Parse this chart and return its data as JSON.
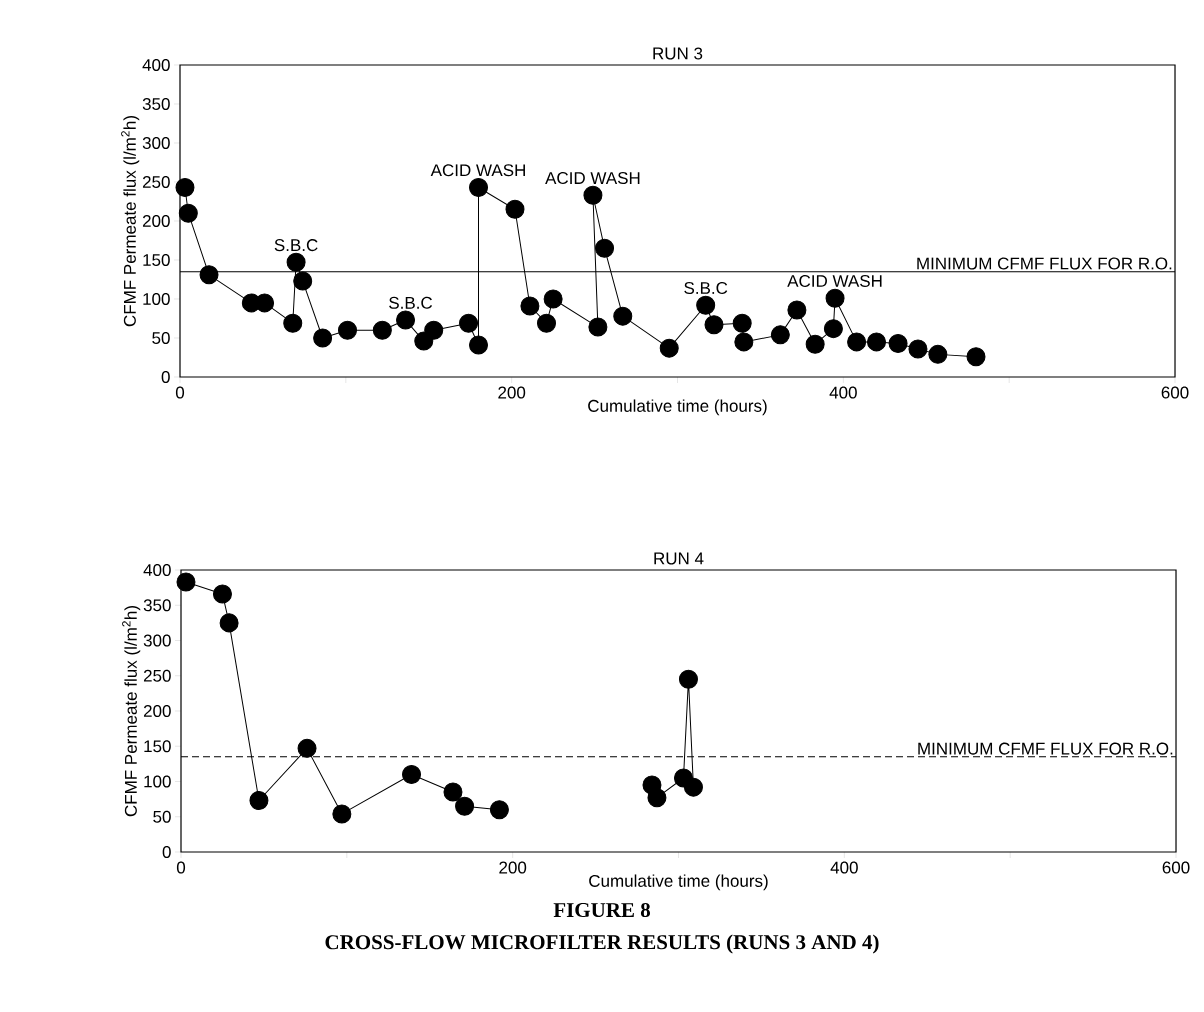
{
  "chart_data": [
    {
      "type": "line",
      "title": "RUN 3",
      "xlabel": "Cumulative time (hours)",
      "ylabel": "CFMF Permeate flux (l/m$^{2}$h)",
      "x": [
        3,
        5,
        17.5,
        43,
        51,
        68,
        70,
        74,
        86,
        101,
        122,
        136,
        147,
        153,
        174,
        180,
        180,
        202,
        211,
        221,
        225,
        252,
        249,
        256,
        267,
        295,
        317,
        322,
        339,
        340,
        362,
        372,
        383,
        394,
        395,
        408,
        420,
        433,
        445,
        457,
        480
      ],
      "series": [
        {
          "color": "#000000",
          "marker": "circle",
          "line_style": "solid",
          "values": [
            243,
            210,
            131,
            95,
            95,
            69,
            147,
            123,
            50,
            60,
            60,
            73,
            46,
            60,
            69,
            41,
            243,
            215,
            91,
            69,
            100,
            64,
            233,
            165,
            78,
            37,
            92,
            67,
            69,
            45,
            54,
            86,
            42,
            62,
            101,
            45,
            45,
            43,
            36,
            29,
            26
          ]
        }
      ],
      "xlim": [
        0,
        600
      ],
      "ylim": [
        0,
        400
      ],
      "xticks": [
        0,
        {
          "value": 100,
          "label": null
        },
        200,
        {
          "value": 300,
          "label": null
        },
        400,
        {
          "value": 500,
          "label": null
        },
        600
      ],
      "yticks": [
        0,
        50,
        100,
        150,
        200,
        250,
        300,
        350,
        400
      ],
      "ref_lines": [
        {
          "axis": "y",
          "value": 135,
          "label": "MINIMUM CFMF FLUX FOR R.O.",
          "line_style": "solid"
        }
      ],
      "annotations": [
        {
          "text": "S.B.C",
          "x": 70,
          "y": 147
        },
        {
          "text": "S.B.C",
          "x": 139,
          "y": 73
        },
        {
          "text": "ACID WASH",
          "x": 180,
          "y": 243
        },
        {
          "text": "ACID WASH",
          "x": 249,
          "y": 233
        },
        {
          "text": "S.B.C",
          "x": 317,
          "y": 92
        },
        {
          "text": "ACID WASH",
          "x": 395,
          "y": 101
        }
      ]
    },
    {
      "type": "line",
      "title": "RUN 4",
      "xlabel": "Cumulative time (hours)",
      "ylabel": "CFMF Permeate flux (l/m$^{2}$h)",
      "x": [
        3,
        25,
        29,
        47,
        76,
        97,
        139,
        164,
        171,
        192,
        240,
        284,
        287,
        303,
        306,
        309
      ],
      "series": [
        {
          "color": "#000000",
          "marker": "circle",
          "line_style": "solid",
          "values": [
            383,
            366,
            325,
            73,
            147,
            54,
            110,
            85,
            65,
            60,
            null,
            95,
            77,
            105,
            245,
            92
          ]
        }
      ],
      "xlim": [
        0,
        600
      ],
      "ylim": [
        0,
        400
      ],
      "xticks": [
        0,
        {
          "value": 100,
          "label": null
        },
        200,
        {
          "value": 300,
          "label": null
        },
        400,
        {
          "value": 500,
          "label": null
        },
        600
      ],
      "yticks": [
        0,
        50,
        100,
        150,
        200,
        250,
        300,
        350,
        400
      ],
      "ref_lines": [
        {
          "axis": "y",
          "value": 135,
          "label": "MINIMUM CFMF FLUX FOR R.O.",
          "line_style": "dashed"
        }
      ],
      "annotations": [
        "FIGURE 8",
        "CROSS-FLOW MICROFILTER RESULTS (RUNS 3 AND 4)"
      ]
    }
  ]
}
